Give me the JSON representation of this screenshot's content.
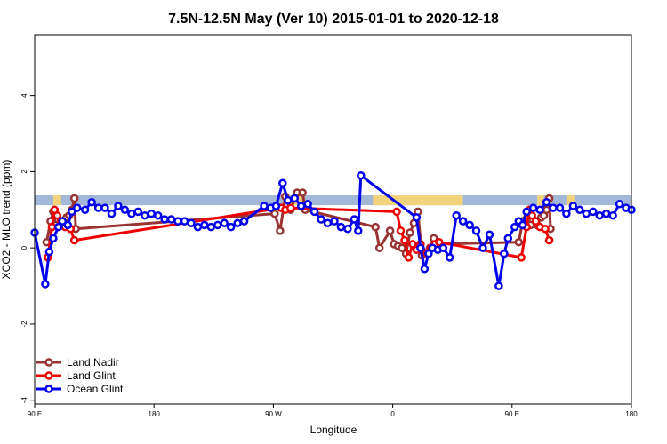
{
  "chart_data": {
    "type": "line",
    "title": "7.5N-12.5N May (Ver 10)   2015-01-01 to 2020-12-18",
    "xlabel": "Longitude",
    "ylabel": "XCO2 - MLO trend (ppm)",
    "x_ticks": [
      {
        "value": 90,
        "label": "90 E"
      },
      {
        "value": 180,
        "label": "180"
      },
      {
        "value": 270,
        "label": "90 W"
      },
      {
        "value": 360,
        "label": "0"
      },
      {
        "value": 450,
        "label": "90 E"
      },
      {
        "value": 540,
        "label": "180"
      }
    ],
    "y_ticks": [
      {
        "value": -4,
        "label": "-4"
      },
      {
        "value": -2,
        "label": "-2"
      },
      {
        "value": 0,
        "label": "0"
      },
      {
        "value": 2,
        "label": "2"
      },
      {
        "value": 4,
        "label": "4"
      }
    ],
    "xlim": [
      90,
      540
    ],
    "ylim": [
      -4.1,
      5.6
    ],
    "grid": false,
    "legend_position": "bottom-left",
    "colors": {
      "land_nadir": "#993333",
      "land_glint": "#ee0000",
      "ocean_glint": "#0000ee",
      "ocean_band": "#a3b8d8",
      "land_band": "#f2d27a"
    },
    "surface_band": {
      "ymin": 1.12,
      "ymax": 1.38,
      "land_segments": [
        [
          104,
          110
        ],
        [
          283,
          292
        ],
        [
          345,
          413
        ],
        [
          469,
          474
        ],
        [
          491,
          497
        ]
      ]
    },
    "series": [
      {
        "name": "Land Nadir",
        "color": "#993333",
        "points": [
          [
            99,
            0.15
          ],
          [
            102,
            0.7
          ],
          [
            104,
            0.95
          ],
          [
            106,
            0.6
          ],
          [
            111,
            0.6
          ],
          [
            114,
            0.8
          ],
          [
            116,
            0.85
          ],
          [
            118,
            1.0
          ],
          [
            120,
            1.3
          ],
          [
            121,
            0.5
          ],
          [
            271,
            0.9
          ],
          [
            275,
            0.45
          ],
          [
            279,
            1.35
          ],
          [
            283,
            1.0
          ],
          [
            288,
            1.45
          ],
          [
            292,
            1.45
          ],
          [
            294,
            1.0
          ],
          [
            347,
            0.55
          ],
          [
            350,
            0.0
          ],
          [
            358,
            0.45
          ],
          [
            361,
            0.1
          ],
          [
            364,
            0.05
          ],
          [
            367,
            0.0
          ],
          [
            370,
            -0.15
          ],
          [
            373,
            0.4
          ],
          [
            376,
            0.65
          ],
          [
            379,
            0.95
          ],
          [
            382,
            -0.2
          ],
          [
            385,
            -0.15
          ],
          [
            388,
            0.0
          ],
          [
            391,
            0.25
          ],
          [
            394,
            0.1
          ],
          [
            455,
            0.15
          ],
          [
            458,
            0.7
          ],
          [
            461,
            0.95
          ],
          [
            464,
            0.6
          ],
          [
            469,
            0.6
          ],
          [
            472,
            0.8
          ],
          [
            474,
            0.85
          ],
          [
            476,
            1.0
          ],
          [
            478,
            1.3
          ],
          [
            479,
            0.5
          ]
        ]
      },
      {
        "name": "Land Glint",
        "color": "#ee0000",
        "points": [
          [
            100,
            -0.25
          ],
          [
            103,
            0.55
          ],
          [
            105,
            1.0
          ],
          [
            107,
            0.85
          ],
          [
            110,
            0.7
          ],
          [
            113,
            0.55
          ],
          [
            117,
            0.5
          ],
          [
            120,
            0.2
          ],
          [
            276,
            1.05
          ],
          [
            279,
            1.0
          ],
          [
            283,
            1.05
          ],
          [
            363,
            0.95
          ],
          [
            366,
            0.45
          ],
          [
            369,
            0.2
          ],
          [
            372,
            -0.25
          ],
          [
            375,
            0.1
          ],
          [
            378,
            -0.05
          ],
          [
            381,
            0.1
          ],
          [
            386,
            -0.15
          ],
          [
            389,
            0.0
          ],
          [
            392,
            0.1
          ],
          [
            395,
            0.15
          ],
          [
            457,
            -0.25
          ],
          [
            461,
            0.55
          ],
          [
            463,
            1.0
          ],
          [
            465,
            0.85
          ],
          [
            468,
            0.7
          ],
          [
            471,
            0.55
          ],
          [
            475,
            0.5
          ],
          [
            478,
            0.2
          ]
        ]
      },
      {
        "name": "Ocean Glint",
        "color": "#0000ee",
        "points": [
          [
            90,
            0.4
          ],
          [
            98,
            -0.95
          ],
          [
            101,
            -0.1
          ],
          [
            104,
            0.25
          ],
          [
            108,
            0.55
          ],
          [
            111,
            0.7
          ],
          [
            115,
            0.6
          ],
          [
            118,
            0.95
          ],
          [
            122,
            1.05
          ],
          [
            128,
            1.0
          ],
          [
            133,
            1.2
          ],
          [
            138,
            1.05
          ],
          [
            143,
            1.05
          ],
          [
            148,
            0.9
          ],
          [
            153,
            1.1
          ],
          [
            158,
            1.0
          ],
          [
            163,
            0.9
          ],
          [
            168,
            0.95
          ],
          [
            173,
            0.85
          ],
          [
            178,
            0.9
          ],
          [
            183,
            0.85
          ],
          [
            188,
            0.75
          ],
          [
            193,
            0.75
          ],
          [
            198,
            0.7
          ],
          [
            203,
            0.7
          ],
          [
            208,
            0.65
          ],
          [
            213,
            0.55
          ],
          [
            218,
            0.6
          ],
          [
            223,
            0.55
          ],
          [
            228,
            0.6
          ],
          [
            233,
            0.65
          ],
          [
            238,
            0.55
          ],
          [
            243,
            0.65
          ],
          [
            248,
            0.7
          ],
          [
            263,
            1.1
          ],
          [
            268,
            1.05
          ],
          [
            272,
            1.1
          ],
          [
            277,
            1.7
          ],
          [
            281,
            1.25
          ],
          [
            286,
            1.3
          ],
          [
            291,
            1.1
          ],
          [
            296,
            1.15
          ],
          [
            301,
            0.95
          ],
          [
            306,
            0.75
          ],
          [
            311,
            0.65
          ],
          [
            316,
            0.7
          ],
          [
            321,
            0.55
          ],
          [
            326,
            0.5
          ],
          [
            331,
            0.75
          ],
          [
            334,
            0.45
          ],
          [
            336,
            1.9
          ],
          [
            378,
            0.8
          ],
          [
            381,
            0.0
          ],
          [
            384,
            -0.55
          ],
          [
            387,
            -0.15
          ],
          [
            390,
            0.0
          ],
          [
            394,
            -0.05
          ],
          [
            398,
            0.0
          ],
          [
            403,
            -0.25
          ],
          [
            408,
            0.85
          ],
          [
            413,
            0.7
          ],
          [
            418,
            0.6
          ],
          [
            423,
            0.45
          ],
          [
            428,
            0.0
          ],
          [
            433,
            0.35
          ],
          [
            440,
            -1.0
          ],
          [
            444,
            -0.15
          ],
          [
            447,
            0.25
          ],
          [
            452,
            0.55
          ],
          [
            455,
            0.7
          ],
          [
            458,
            0.6
          ],
          [
            461,
            0.95
          ],
          [
            466,
            1.05
          ],
          [
            471,
            1.0
          ],
          [
            476,
            1.2
          ],
          [
            481,
            1.05
          ],
          [
            486,
            1.05
          ],
          [
            491,
            0.9
          ],
          [
            496,
            1.1
          ],
          [
            501,
            1.0
          ],
          [
            506,
            0.9
          ],
          [
            511,
            0.95
          ],
          [
            516,
            0.85
          ],
          [
            521,
            0.9
          ],
          [
            526,
            0.85
          ],
          [
            531,
            1.15
          ],
          [
            536,
            1.05
          ],
          [
            540,
            1.0
          ]
        ]
      }
    ]
  }
}
